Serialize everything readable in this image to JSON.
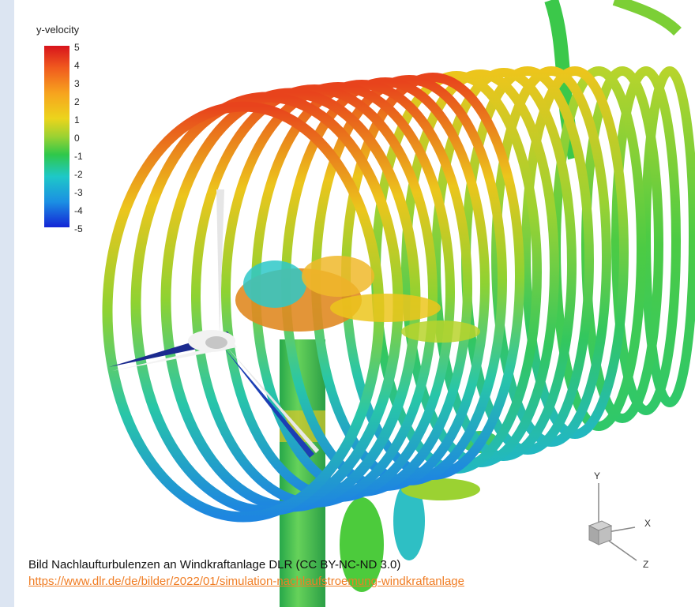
{
  "legend": {
    "title": "y-velocity",
    "ticks": [
      "5",
      "4",
      "3",
      "2",
      "1",
      "0",
      "-1",
      "-2",
      "-3",
      "-4",
      "-5"
    ]
  },
  "axes_indicator": {
    "y_label": "Y",
    "x_label": "X",
    "z_label": "Z"
  },
  "caption": {
    "text": "Bild Nachlaufturbulenzen an Windkraftanlage DLR (CC BY-NC-ND 3.0)",
    "link": "https://www.dlr.de/de/bilder/2022/01/simulation-nachlaufstroemung-windkraftanlage"
  },
  "colors": {
    "accent_link": "#f07d24",
    "page_bg": "#dce5f2",
    "colormap_high": "#d8141c",
    "colormap_mid": "#2fc84a",
    "colormap_low": "#1425d6"
  },
  "icon_names": [
    "axes-triad-icon"
  ]
}
